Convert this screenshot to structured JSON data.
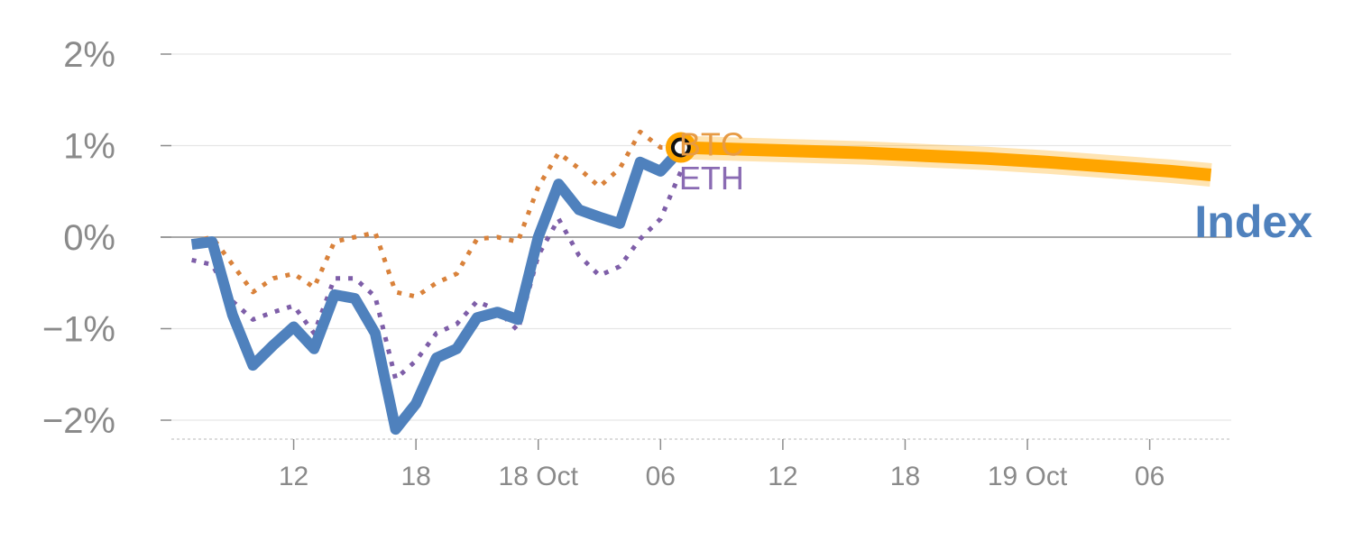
{
  "chart_data": {
    "type": "line",
    "ylim": [
      -2.2,
      2.0
    ],
    "y_ticks": [
      {
        "value": 2,
        "label": "2%"
      },
      {
        "value": 1,
        "label": "1%"
      },
      {
        "value": 0,
        "label": "0%"
      },
      {
        "value": -1,
        "label": "−1%"
      },
      {
        "value": -2,
        "label": "−2%"
      }
    ],
    "x_ticks": [
      {
        "t": 6,
        "label": "12"
      },
      {
        "t": 12,
        "label": "18"
      },
      {
        "t": 18,
        "label": "18 Oct"
      },
      {
        "t": 24,
        "label": "06"
      },
      {
        "t": 30,
        "label": "12"
      },
      {
        "t": 36,
        "label": "18"
      },
      {
        "t": 42,
        "label": "19 Oct"
      },
      {
        "t": 48,
        "label": "06"
      }
    ],
    "xlim": [
      0,
      52
    ],
    "grid": true,
    "series": [
      {
        "name": "Index",
        "color": "#4f81bd",
        "style": "solid",
        "x": [
          1,
          2,
          3,
          4,
          5,
          6,
          7,
          8,
          9,
          10,
          11,
          12,
          13,
          14,
          15,
          16,
          17,
          18,
          19,
          20,
          21,
          22,
          23,
          24,
          25
        ],
        "values": [
          -0.08,
          -0.05,
          -0.85,
          -1.4,
          -1.18,
          -0.98,
          -1.22,
          -0.63,
          -0.67,
          -1.05,
          -2.1,
          -1.82,
          -1.32,
          -1.22,
          -0.88,
          -0.82,
          -0.9,
          0.0,
          0.58,
          0.3,
          0.22,
          0.15,
          0.82,
          0.72,
          0.96
        ]
      },
      {
        "name": "BTC",
        "color": "#d9823b",
        "style": "dotted",
        "x": [
          1,
          2,
          3,
          4,
          5,
          6,
          7,
          8,
          9,
          10,
          11,
          12,
          13,
          14,
          15,
          16,
          17,
          18,
          19,
          20,
          21,
          22,
          23,
          24,
          25
        ],
        "values": [
          -0.05,
          0.0,
          -0.3,
          -0.6,
          -0.45,
          -0.4,
          -0.55,
          -0.05,
          0.0,
          0.05,
          -0.6,
          -0.65,
          -0.5,
          -0.4,
          -0.02,
          0.0,
          -0.05,
          0.55,
          0.92,
          0.75,
          0.55,
          0.75,
          1.15,
          0.98,
          0.98
        ]
      },
      {
        "name": "ETH",
        "color": "#7e5ea8",
        "style": "dotted",
        "x": [
          1,
          2,
          3,
          4,
          5,
          6,
          7,
          8,
          9,
          10,
          11,
          12,
          13,
          14,
          15,
          16,
          17,
          18,
          19,
          20,
          21,
          22,
          23,
          24,
          25
        ],
        "values": [
          -0.25,
          -0.3,
          -0.7,
          -0.9,
          -0.82,
          -0.75,
          -1.05,
          -0.45,
          -0.45,
          -0.65,
          -1.55,
          -1.35,
          -1.05,
          -0.95,
          -0.7,
          -0.8,
          -1.02,
          -0.2,
          0.2,
          -0.2,
          -0.42,
          -0.32,
          -0.02,
          0.2,
          0.72
        ]
      },
      {
        "name": "Index",
        "color": "#ffa500",
        "style": "projection",
        "x": [
          25,
          28,
          31,
          34,
          37,
          40,
          43,
          46,
          49,
          51
        ],
        "values": [
          0.98,
          0.96,
          0.94,
          0.92,
          0.89,
          0.86,
          0.82,
          0.77,
          0.72,
          0.68
        ]
      }
    ],
    "labels": {
      "btc": "BTC",
      "eth": "ETH",
      "index": "Index"
    }
  }
}
